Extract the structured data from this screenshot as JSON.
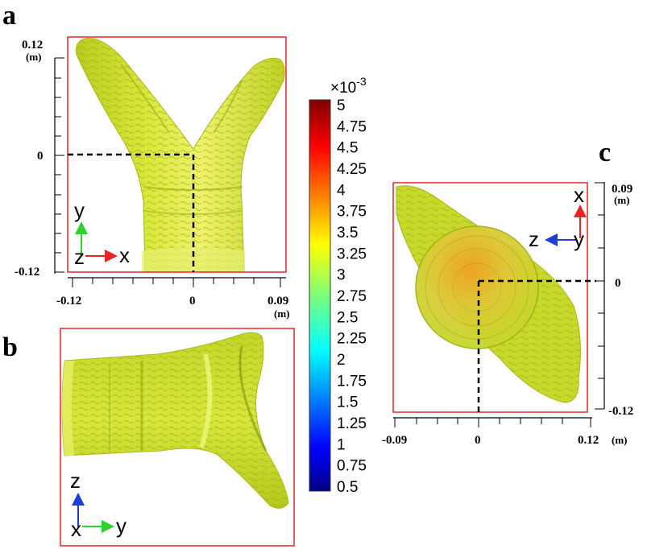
{
  "panels": {
    "a": {
      "letter": "a",
      "y_ticks": [
        "0.12",
        "0",
        "-0.12"
      ],
      "y_unit": "(m)",
      "x_ticks": [
        "-0.12",
        "0",
        "0.09"
      ],
      "x_unit": "(m)",
      "triad": {
        "up": "y",
        "right": "x",
        "out": "z"
      }
    },
    "b": {
      "letter": "b",
      "triad": {
        "up": "z",
        "right": "y",
        "out": "x"
      }
    },
    "c": {
      "letter": "c",
      "y_ticks": [
        "0.09",
        "0",
        "-0.12"
      ],
      "y_unit": "(m)",
      "x_ticks": [
        "-0.09",
        "0",
        "0.12"
      ],
      "x_unit": "(m)",
      "triad": {
        "up": "x",
        "left": "z",
        "out": "y"
      }
    }
  },
  "colorbar": {
    "exponent_base": "×10",
    "exponent_power": "-3",
    "labels": [
      "5",
      "4.75",
      "4.5",
      "4.25",
      "4",
      "3.75",
      "3.5",
      "3.25",
      "3",
      "2.75",
      "2.5",
      "2.25",
      "2",
      "1.75",
      "1.5",
      "1.25",
      "1",
      "0.75",
      "0.5"
    ]
  },
  "colors": {
    "frame": "#e8262a",
    "surface": "#cfe030",
    "axis_red": "#e8262a",
    "axis_green": "#2fd12f",
    "axis_blue": "#1f3ed8"
  }
}
